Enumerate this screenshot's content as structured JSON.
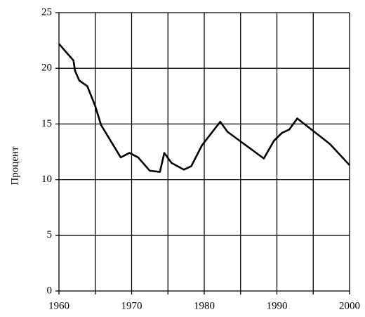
{
  "chart_data": {
    "type": "line",
    "y_label": "Процент",
    "x": [
      1960,
      1962.0,
      1962.2,
      1962.8,
      1963.9,
      1965.0,
      1965.8,
      1968.5,
      1969.7,
      1970.9,
      1972.5,
      1973.9,
      1974.5,
      1975.5,
      1977.2,
      1978.2,
      1979.7,
      1982.2,
      1983.2,
      1988.2,
      1989.6,
      1990.7,
      1991.7,
      1992.8,
      1997.3,
      2000
    ],
    "series": [
      {
        "color": "#000000",
        "values": [
          22.2,
          20.7,
          19.8,
          18.9,
          18.4,
          16.6,
          14.9,
          12.0,
          12.4,
          12.0,
          10.8,
          10.7,
          12.4,
          11.5,
          10.9,
          11.2,
          13.1,
          15.2,
          14.3,
          11.9,
          13.5,
          14.2,
          14.5,
          15.5,
          13.2,
          11.3
        ]
      }
    ],
    "xlim": [
      1960,
      2000
    ],
    "ylim": [
      0,
      25
    ],
    "xticks": [
      1960,
      1970,
      1980,
      1990,
      2000
    ],
    "xgrid": [
      1960,
      1965,
      1970,
      1975,
      1980,
      1985,
      1990,
      1995,
      2000
    ],
    "yticks": [
      0,
      5,
      10,
      15,
      20,
      25
    ],
    "grid": true
  }
}
